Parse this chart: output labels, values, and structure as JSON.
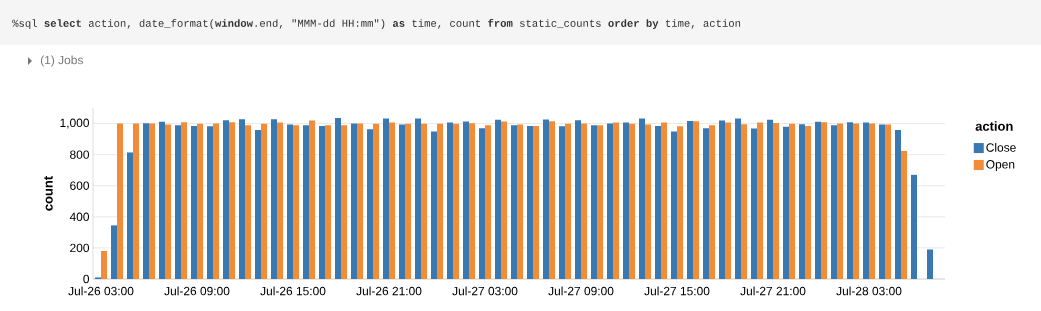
{
  "chart_data": {
    "type": "bar",
    "annotations": [
      "%sql **select** action, date_format(**window**.end, \"MMM-dd HH:mm\") **as** time, count **from** static_counts **order** **by** time, action",
      "(1) Jobs"
    ],
    "ylabel": "count",
    "legend_title": "action",
    "categories": [
      "Jul-26 03:00",
      null,
      null,
      null,
      null,
      null,
      "Jul-26 09:00",
      null,
      null,
      null,
      null,
      null,
      "Jul-26 15:00",
      null,
      null,
      null,
      null,
      null,
      "Jul-26 21:00",
      null,
      null,
      null,
      null,
      null,
      "Jul-27 03:00",
      null,
      null,
      null,
      null,
      null,
      "Jul-27 09:00",
      null,
      null,
      null,
      null,
      null,
      "Jul-27 15:00",
      null,
      null,
      null,
      null,
      null,
      "Jul-27 21:00",
      null,
      null,
      null,
      null,
      null,
      "Jul-28 03:00",
      null,
      null,
      null,
      null
    ],
    "series": [
      {
        "name": "Close",
        "color": "#3a78b1",
        "values": [
          10,
          345,
          814,
          1002,
          1011,
          989,
          985,
          983,
          1021,
          1028,
          959,
          1028,
          994,
          989,
          985,
          1036,
          1000,
          964,
          1032,
          994,
          1032,
          949,
          1006,
          1013,
          970,
          1024,
          989,
          985,
          1026,
          983,
          1021,
          989,
          1000,
          1006,
          1032,
          985,
          949,
          1017,
          970,
          1019,
          1032,
          968,
          1024,
          979,
          996,
          1011,
          989,
          1009,
          1006,
          994,
          959,
          670,
          190
        ]
      },
      {
        "name": "Open",
        "color": "#f28c38",
        "values": [
          180,
          1000,
          1000,
          1000,
          994,
          1009,
          998,
          1000,
          1009,
          989,
          998,
          1006,
          989,
          1019,
          989,
          989,
          1000,
          998,
          1006,
          998,
          998,
          998,
          998,
          1002,
          989,
          1013,
          994,
          985,
          1015,
          998,
          1000,
          989,
          1006,
          998,
          994,
          1006,
          983,
          1015,
          989,
          1006,
          996,
          1006,
          1004,
          998,
          985,
          1009,
          1000,
          1000,
          1000,
          994,
          824,
          null,
          null
        ]
      }
    ],
    "ylim": [
      0,
      1100
    ],
    "yticks": [
      0,
      200,
      400,
      600,
      800,
      {
        "value": 1000,
        "label": "1,000"
      }
    ],
    "grid": "y",
    "legend": "right"
  }
}
